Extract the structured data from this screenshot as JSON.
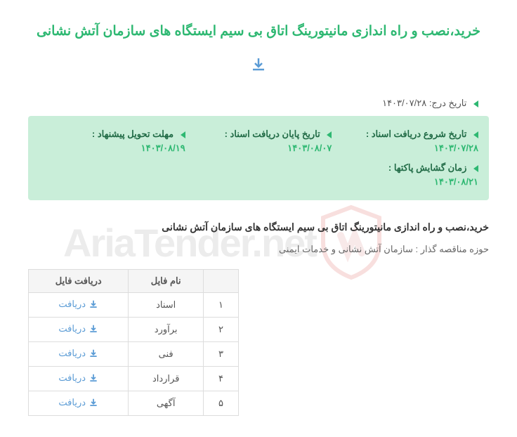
{
  "title": "خرید،نصب و راه اندازی مانیتورینگ اتاق بی سیم ایستگاه های سازمان آتش نشانی",
  "postDate": {
    "label": "تاریخ درج:",
    "value": "۱۴۰۳/۰۷/۲۸"
  },
  "dates": [
    {
      "label": "تاریخ شروع دریافت اسناد :",
      "value": "۱۴۰۳/۰۷/۲۸"
    },
    {
      "label": "تاریخ پایان دریافت اسناد :",
      "value": "۱۴۰۳/۰۸/۰۷"
    },
    {
      "label": "مهلت تحویل پیشنهاد :",
      "value": "۱۴۰۳/۰۸/۱۹"
    },
    {
      "label": "زمان گشایش پاکتها :",
      "value": "۱۴۰۳/۰۸/۲۱"
    }
  ],
  "subtitle": "خرید،نصب و راه اندازی مانیتورینگ اتاق بی سیم ایستگاه های سازمان آتش نشانی",
  "orgLabel": "حوزه مناقصه گذار :",
  "orgValue": "سازمان آتش نشانی و خدمات ایمنی",
  "table": {
    "headers": {
      "num": "",
      "name": "نام فایل",
      "download": "دریافت فایل"
    },
    "rows": [
      {
        "num": "۱",
        "name": "اسناد",
        "link": "دریافت"
      },
      {
        "num": "۲",
        "name": "برآورد",
        "link": "دریافت"
      },
      {
        "num": "۳",
        "name": "فنی",
        "link": "دریافت"
      },
      {
        "num": "۴",
        "name": "قرارداد",
        "link": "دریافت"
      },
      {
        "num": "۵",
        "name": "آگهی",
        "link": "دریافت"
      }
    ]
  },
  "watermarkText": "AriaTender.net",
  "colors": {
    "green": "#2eb872",
    "darkGreen": "#216b46",
    "boxBg": "#c9eed9",
    "linkBlue": "#5a9bd5",
    "border": "#dddddd",
    "text": "#555555"
  }
}
